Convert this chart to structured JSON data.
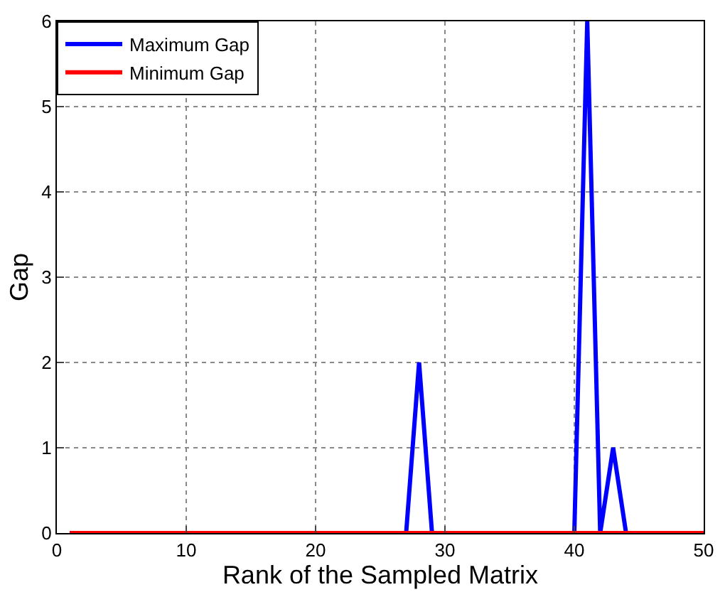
{
  "chart_data": {
    "type": "line",
    "xlabel": "Rank of the Sampled Matrix",
    "ylabel": "Gap",
    "series": [
      {
        "name": "Maximum Gap",
        "color": "#0000ff",
        "x": [
          1,
          27,
          28,
          29,
          40,
          41,
          42,
          43,
          44,
          50
        ],
        "values": [
          0,
          0,
          2,
          0,
          0,
          6,
          0,
          1,
          0,
          0
        ]
      },
      {
        "name": "Minimum Gap",
        "color": "#ff0000",
        "x": [
          1,
          50
        ],
        "values": [
          0,
          0
        ]
      }
    ],
    "xlim": [
      0,
      50
    ],
    "xticks": [
      0,
      10,
      20,
      30,
      40,
      50
    ],
    "ylim": [
      0,
      6
    ],
    "yticks": [
      0,
      1,
      2,
      3,
      4,
      5,
      6
    ],
    "grid": true,
    "legend": "top left",
    "marker": "none",
    "line_style": "solid"
  }
}
